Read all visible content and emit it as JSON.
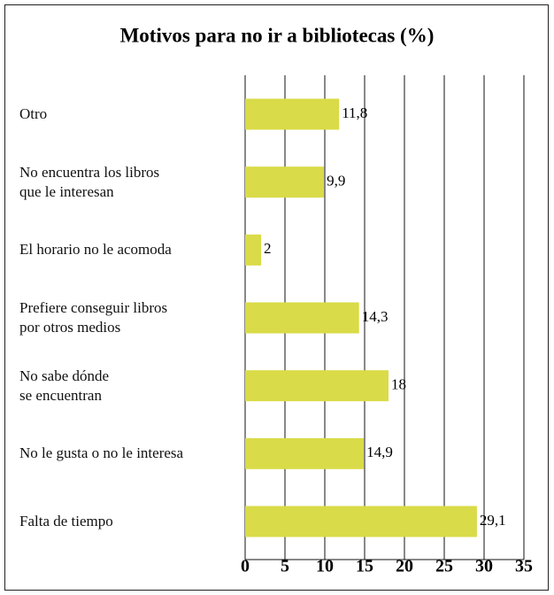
{
  "chart_data": {
    "type": "bar",
    "orientation": "horizontal",
    "title": "Motivos para no ir a bibliotecas (%)",
    "categories": [
      "Otro",
      "No encuentra los libros\nque le interesan",
      "El horario no le acomoda",
      "Prefiere conseguir libros\npor otros medios",
      "No sabe dónde\nse encuentran",
      "No le gusta o no le interesa",
      "Falta de tiempo"
    ],
    "values": [
      11.8,
      9.9,
      2,
      14.3,
      18,
      14.9,
      29.1
    ],
    "value_labels": [
      "11,8",
      "9,9",
      "2",
      "14,3",
      "18",
      "14,9",
      "29,1"
    ],
    "color": "#d9db48",
    "xlim": [
      0,
      35
    ],
    "xticks": [
      0,
      5,
      10,
      15,
      20,
      25,
      30,
      35
    ],
    "grid": true
  }
}
